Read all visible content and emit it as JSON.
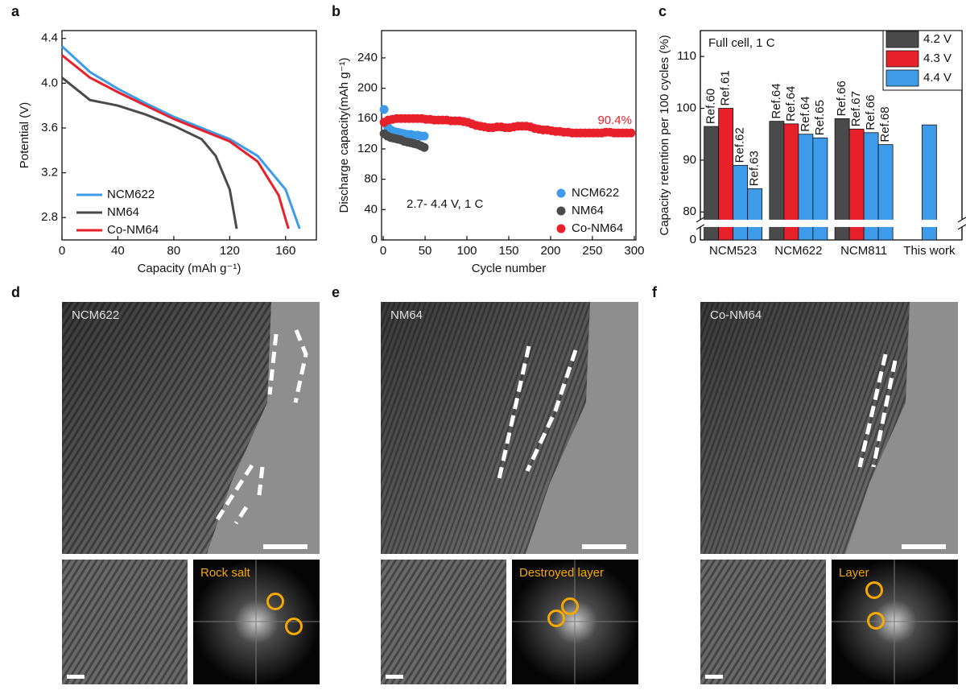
{
  "chart_data": [
    {
      "panel": "a",
      "type": "line",
      "xlabel": "Capacity (mAh g⁻¹)",
      "ylabel": "Potential (V)",
      "xlim": [
        0,
        182
      ],
      "xticks": [
        0,
        40,
        80,
        120,
        160
      ],
      "ylim": [
        2.6,
        4.47
      ],
      "yticks": [
        2.8,
        3.2,
        3.6,
        {
          "value": 4,
          "label": "4.0"
        },
        4.4
      ],
      "legend": "lower left",
      "series": [
        {
          "name": "NCM622",
          "color": "#3d9be9",
          "x": [
            0,
            20,
            40,
            60,
            80,
            100,
            120,
            140,
            160,
            170
          ],
          "values": [
            4.33,
            4.1,
            3.95,
            3.82,
            3.7,
            3.6,
            3.5,
            3.35,
            3.05,
            2.7
          ]
        },
        {
          "name": "NM64",
          "color": "#4a4a4a",
          "x": [
            0,
            20,
            40,
            60,
            80,
            100,
            110,
            120,
            125
          ],
          "values": [
            4.05,
            3.85,
            3.8,
            3.72,
            3.62,
            3.5,
            3.35,
            3.05,
            2.7
          ]
        },
        {
          "name": "Co-NM64",
          "color": "#e8202a",
          "x": [
            0,
            20,
            40,
            60,
            80,
            100,
            120,
            140,
            155,
            162
          ],
          "values": [
            4.25,
            4.05,
            3.92,
            3.8,
            3.68,
            3.58,
            3.48,
            3.3,
            3.0,
            2.7
          ]
        }
      ]
    },
    {
      "panel": "b",
      "type": "scatter",
      "xlabel": "Cycle number",
      "ylabel": "Discharge capacity(mAh g⁻¹)",
      "xlim": [
        -2,
        302
      ],
      "xticks": [
        0,
        50,
        100,
        150,
        200,
        250,
        300
      ],
      "ylim": [
        0,
        276
      ],
      "yticks": [
        0,
        40,
        80,
        120,
        160,
        200,
        240
      ],
      "legend": "lower right",
      "annotations": [
        {
          "text": "2.7- 4.4 V, 1 C"
        },
        {
          "text": "90.4%",
          "color": "#e8202a"
        }
      ],
      "series": [
        {
          "name": "NCM622",
          "color": "#3d9be9",
          "x": [
            1,
            5,
            9,
            13,
            17,
            21,
            25,
            29,
            33,
            37,
            41,
            45,
            49
          ],
          "values": [
            172,
            150,
            145,
            143,
            142,
            141,
            140,
            139,
            139,
            138,
            138,
            137,
            137
          ]
        },
        {
          "name": "NM64",
          "color": "#4a4a4a",
          "x": [
            1,
            5,
            9,
            13,
            17,
            21,
            25,
            29,
            33,
            37,
            41,
            45,
            49
          ],
          "values": [
            140,
            137,
            135,
            134,
            133,
            132,
            130,
            129,
            128,
            127,
            126,
            124,
            122
          ]
        },
        {
          "name": "Co-NM64",
          "color": "#e8202a",
          "x": [
            1,
            6,
            11,
            16,
            21,
            26,
            31,
            36,
            41,
            46,
            51,
            56,
            61,
            66,
            71,
            76,
            81,
            86,
            91,
            96,
            101,
            106,
            111,
            116,
            121,
            126,
            131,
            136,
            141,
            146,
            151,
            156,
            161,
            166,
            171,
            176,
            181,
            186,
            191,
            196,
            201,
            206,
            211,
            216,
            221,
            226,
            231,
            236,
            241,
            246,
            251,
            256,
            261,
            266,
            271,
            276,
            281,
            286,
            291,
            296
          ],
          "values": [
            155,
            158,
            159,
            160,
            160,
            160,
            160,
            160,
            160,
            160,
            159,
            159,
            158,
            158,
            158,
            158,
            157,
            157,
            157,
            156,
            155,
            153,
            151,
            150,
            149,
            148,
            148,
            149,
            149,
            148,
            148,
            149,
            150,
            150,
            150,
            149,
            147,
            146,
            145,
            145,
            144,
            143,
            143,
            142,
            142,
            141,
            141,
            141,
            141,
            141,
            141,
            141,
            141,
            142,
            142,
            141,
            141,
            141,
            141,
            141
          ]
        }
      ]
    },
    {
      "panel": "c",
      "type": "bar",
      "ylabel": "Capacity retention per 100 cycles (%)",
      "ylim": [
        0,
        115
      ],
      "yticks": [
        0,
        80,
        90,
        100,
        110
      ],
      "axis_break": [
        2.5,
        78.5
      ],
      "legend": "upper right",
      "annotations": [
        {
          "text": "Full cell, 1 C"
        }
      ],
      "series": [
        {
          "name": "4.2 V",
          "color": "#4a4a4a"
        },
        {
          "name": "4.3 V",
          "color": "#e8202a"
        },
        {
          "name": "4.4 V",
          "color": "#3d9be9"
        }
      ],
      "groups": [
        {
          "category": "NCM523",
          "bars": [
            {
              "series": 0,
              "value": 96.5,
              "label": "Ref.60"
            },
            {
              "series": 1,
              "value": 100,
              "label": "Ref.61"
            },
            {
              "series": 2,
              "value": 89,
              "label": "Ref.62"
            },
            {
              "series": 2,
              "value": 84.5,
              "label": "Ref.63"
            }
          ]
        },
        {
          "category": "NCM622",
          "bars": [
            {
              "series": 0,
              "value": 97.5,
              "label": "Ref.64"
            },
            {
              "series": 1,
              "value": 97,
              "label": "Ref.64"
            },
            {
              "series": 2,
              "value": 95,
              "label": "Ref.64"
            },
            {
              "series": 2,
              "value": 94.3,
              "label": "Ref.65"
            }
          ]
        },
        {
          "category": "NCM811",
          "bars": [
            {
              "series": 0,
              "value": 98,
              "label": "Ref.66"
            },
            {
              "series": 1,
              "value": 96,
              "label": "Ref.67"
            },
            {
              "series": 2,
              "value": 95.3,
              "label": "Ref.66"
            },
            {
              "series": 2,
              "value": 93,
              "label": "Ref.68"
            }
          ]
        },
        {
          "category": "This work",
          "bars": [
            {
              "series": 2,
              "value": 96.8
            }
          ]
        }
      ]
    }
  ],
  "images": [
    {
      "panel": "d",
      "title": "NCM622",
      "fft_label": "Rock salt"
    },
    {
      "panel": "e",
      "title": "NM64",
      "fft_label": "Destroyed layer"
    },
    {
      "panel": "f",
      "title": "Co-NM64",
      "fft_label": "Layer"
    }
  ]
}
